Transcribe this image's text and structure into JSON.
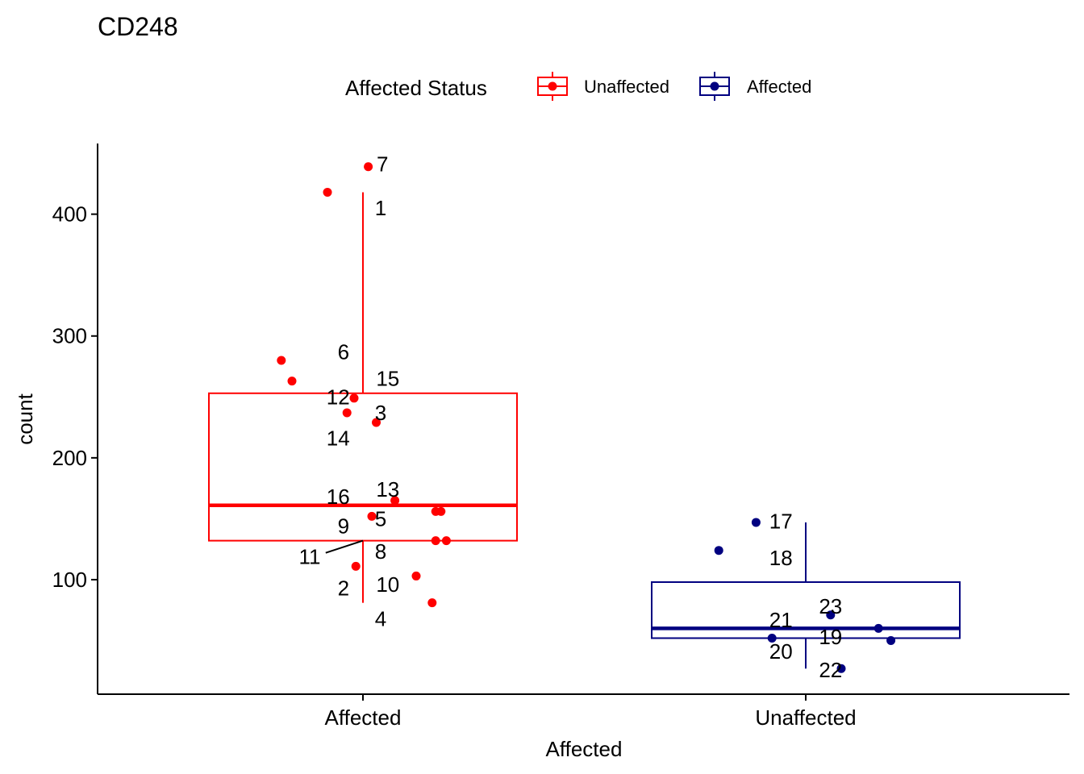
{
  "chart_data": {
    "type": "box",
    "title": "CD248",
    "xlabel": "Affected",
    "ylabel": "count",
    "ylim": [
      6,
      458
    ],
    "yticks": [
      100,
      200,
      300,
      400
    ],
    "categories": [
      "Affected",
      "Unaffected"
    ],
    "legend": {
      "title": "Affected Status",
      "position": "top",
      "entries": [
        {
          "label": "Unaffected",
          "color": "#ff0000"
        },
        {
          "label": "Affected",
          "color": "#000080"
        }
      ]
    },
    "grid": false,
    "series": [
      {
        "category": "Affected",
        "color": "#ff0000",
        "box": {
          "whisker_low": 81,
          "q1": 132,
          "median": 161,
          "q3": 253,
          "whisker_high": 418
        },
        "points": [
          {
            "jitter": -0.4,
            "y": 418
          },
          {
            "jitter": 0.06,
            "y": 439
          },
          {
            "jitter": -0.92,
            "y": 280
          },
          {
            "jitter": -0.8,
            "y": 263
          },
          {
            "jitter": -0.1,
            "y": 249
          },
          {
            "jitter": -0.18,
            "y": 237
          },
          {
            "jitter": 0.15,
            "y": 229
          },
          {
            "jitter": 0.36,
            "y": 165
          },
          {
            "jitter": 0.82,
            "y": 156
          },
          {
            "jitter": 0.88,
            "y": 156
          },
          {
            "jitter": 0.1,
            "y": 152
          },
          {
            "jitter": 0.82,
            "y": 132
          },
          {
            "jitter": 0.94,
            "y": 132
          },
          {
            "jitter": -0.08,
            "y": 111
          },
          {
            "jitter": 0.6,
            "y": 103
          },
          {
            "jitter": 0.78,
            "y": 81
          }
        ],
        "labels": [
          {
            "text": "7",
            "dx": 0.22,
            "y": 441
          },
          {
            "text": "1",
            "dx": 0.2,
            "y": 405
          },
          {
            "text": "6",
            "dx": -0.22,
            "y": 287
          },
          {
            "text": "15",
            "dx": 0.28,
            "y": 265
          },
          {
            "text": "12",
            "dx": -0.28,
            "y": 250
          },
          {
            "text": "3",
            "dx": 0.2,
            "y": 237
          },
          {
            "text": "14",
            "dx": -0.28,
            "y": 216
          },
          {
            "text": "13",
            "dx": 0.28,
            "y": 174
          },
          {
            "text": "16",
            "dx": -0.28,
            "y": 168
          },
          {
            "text": "5",
            "dx": 0.2,
            "y": 150
          },
          {
            "text": "9",
            "dx": -0.22,
            "y": 144
          },
          {
            "text": "8",
            "dx": 0.2,
            "y": 123
          },
          {
            "text": "11",
            "dx": -0.6,
            "y": 119
          },
          {
            "text": "10",
            "dx": 0.28,
            "y": 96
          },
          {
            "text": "2",
            "dx": -0.22,
            "y": 93
          },
          {
            "text": "4",
            "dx": 0.2,
            "y": 68
          }
        ],
        "leader": {
          "from_dx": -0.42,
          "from_y": 122,
          "to_y": 132
        }
      },
      {
        "category": "Unaffected",
        "color": "#000080",
        "box": {
          "whisker_low": 27,
          "q1": 52,
          "median": 60,
          "q3": 98,
          "whisker_high": 147
        },
        "points": [
          {
            "jitter": -0.56,
            "y": 147
          },
          {
            "jitter": -0.98,
            "y": 124
          },
          {
            "jitter": 0.28,
            "y": 71
          },
          {
            "jitter": 0.82,
            "y": 60
          },
          {
            "jitter": 0.96,
            "y": 50
          },
          {
            "jitter": -0.38,
            "y": 52
          },
          {
            "jitter": 0.4,
            "y": 27
          }
        ],
        "labels": [
          {
            "text": "17",
            "dx": -0.28,
            "y": 148
          },
          {
            "text": "18",
            "dx": -0.28,
            "y": 118
          },
          {
            "text": "23",
            "dx": 0.28,
            "y": 78
          },
          {
            "text": "21",
            "dx": -0.28,
            "y": 67
          },
          {
            "text": "19",
            "dx": 0.28,
            "y": 53
          },
          {
            "text": "20",
            "dx": -0.28,
            "y": 41
          },
          {
            "text": "22",
            "dx": 0.28,
            "y": 26
          }
        ]
      }
    ]
  }
}
